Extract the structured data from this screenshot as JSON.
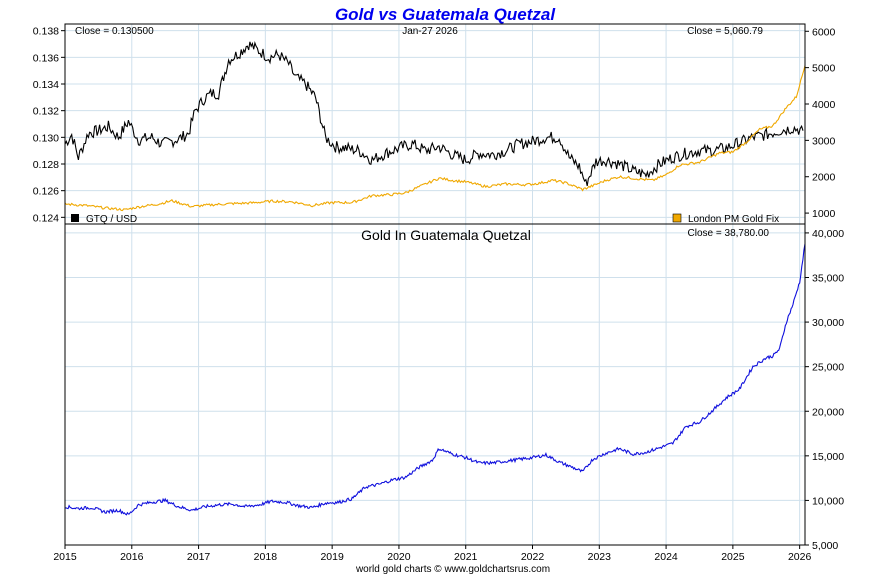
{
  "chart_data": [
    {
      "type": "line",
      "title": "Gold vs Guatemala Quetzal",
      "date_label": "Jan-27  2026",
      "left_close_label": "Close = 0.130500",
      "right_close_label": "Close = 5,060.79",
      "x_ticks": [
        "2015",
        "2016",
        "2017",
        "2018",
        "2019",
        "2020",
        "2021",
        "2022",
        "2023",
        "2024",
        "2025",
        "2026"
      ],
      "xlim": [
        2015.0,
        2026.08
      ],
      "left_axis": {
        "ylim": [
          0.1235,
          0.1385
        ],
        "ticks": [
          "0.138",
          "0.136",
          "0.134",
          "0.132",
          "0.130",
          "0.128",
          "0.126",
          "0.124"
        ],
        "tick_values": [
          0.138,
          0.136,
          0.134,
          0.132,
          0.13,
          0.128,
          0.126,
          0.124
        ]
      },
      "right_axis": {
        "ylim": [
          700,
          6200
        ],
        "ticks": [
          "6000",
          "5000",
          "4000",
          "3000",
          "2000",
          "1000"
        ],
        "tick_values": [
          6000,
          5000,
          4000,
          3000,
          2000,
          1000
        ]
      },
      "series": [
        {
          "name": "GTQ / USD",
          "axis": "left",
          "color": "#000000",
          "x": [
            2015.0,
            2015.1,
            2015.2,
            2015.35,
            2015.5,
            2015.65,
            2015.8,
            2015.95,
            2016.1,
            2016.3,
            2016.45,
            2016.6,
            2016.75,
            2016.85,
            2016.95,
            2017.1,
            2017.2,
            2017.3,
            2017.45,
            2017.6,
            2017.75,
            2017.9,
            2018.05,
            2018.2,
            2018.35,
            2018.45,
            2018.6,
            2018.75,
            2018.9,
            2019.05,
            2019.2,
            2019.4,
            2019.6,
            2019.8,
            2020.0,
            2020.2,
            2020.4,
            2020.6,
            2020.8,
            2021.0,
            2021.2,
            2021.4,
            2021.6,
            2021.8,
            2022.0,
            2022.2,
            2022.4,
            2022.55,
            2022.7,
            2022.8,
            2022.95,
            2023.1,
            2023.3,
            2023.5,
            2023.7,
            2023.9,
            2024.1,
            2024.3,
            2024.5,
            2024.7,
            2024.9,
            2025.1,
            2025.3,
            2025.5,
            2025.7,
            2025.9,
            2026.05
          ],
          "values": [
            0.1295,
            0.1302,
            0.1285,
            0.1303,
            0.1305,
            0.1308,
            0.13,
            0.1312,
            0.1298,
            0.13,
            0.1295,
            0.1297,
            0.13,
            0.1303,
            0.132,
            0.133,
            0.1333,
            0.1333,
            0.1358,
            0.1363,
            0.137,
            0.1365,
            0.136,
            0.1362,
            0.1355,
            0.1345,
            0.134,
            0.133,
            0.13,
            0.1293,
            0.1292,
            0.129,
            0.1283,
            0.1288,
            0.1292,
            0.1295,
            0.129,
            0.1293,
            0.1287,
            0.1283,
            0.1288,
            0.1287,
            0.129,
            0.1295,
            0.1297,
            0.13,
            0.13,
            0.1285,
            0.1278,
            0.1265,
            0.1282,
            0.1283,
            0.128,
            0.1275,
            0.1272,
            0.128,
            0.1285,
            0.1288,
            0.129,
            0.129,
            0.1292,
            0.1296,
            0.13,
            0.1302,
            0.1305,
            0.1307,
            0.1305
          ]
        },
        {
          "name": "London PM Gold Fix",
          "axis": "right",
          "color": "#f0a800",
          "x": [
            2015.0,
            2015.3,
            2015.6,
            2015.9,
            2016.1,
            2016.4,
            2016.6,
            2016.9,
            2017.2,
            2017.5,
            2017.8,
            2018.1,
            2018.4,
            2018.7,
            2019.0,
            2019.3,
            2019.6,
            2019.9,
            2020.1,
            2020.3,
            2020.6,
            2020.8,
            2021.0,
            2021.3,
            2021.6,
            2021.9,
            2022.1,
            2022.3,
            2022.5,
            2022.75,
            2022.9,
            2023.1,
            2023.3,
            2023.6,
            2023.8,
            2024.0,
            2024.2,
            2024.5,
            2024.8,
            2025.0,
            2025.2,
            2025.4,
            2025.6,
            2025.8,
            2025.95,
            2026.08
          ],
          "values": [
            1250,
            1210,
            1140,
            1090,
            1170,
            1250,
            1340,
            1180,
            1230,
            1260,
            1280,
            1330,
            1310,
            1210,
            1290,
            1290,
            1480,
            1510,
            1560,
            1720,
            1960,
            1900,
            1860,
            1730,
            1800,
            1780,
            1820,
            1900,
            1830,
            1650,
            1750,
            1900,
            2000,
            1940,
            1900,
            2050,
            2320,
            2400,
            2650,
            2680,
            2950,
            3300,
            3400,
            3900,
            4200,
            5060
          ]
        }
      ],
      "legend": {
        "left": "GTQ / USD",
        "right": "London PM Gold Fix"
      }
    },
    {
      "type": "line",
      "title": "Gold In Guatemala Quetzal",
      "close_label": "Close = 38,780.00",
      "footer": "world gold charts © www.goldchartsrus.com",
      "xlim": [
        2015.0,
        2026.08
      ],
      "ylim": [
        5000,
        41000
      ],
      "y_ticks": [
        "40,000",
        "35,000",
        "30,000",
        "25,000",
        "20,000",
        "15,000",
        "10,000",
        "5,000"
      ],
      "y_tick_values": [
        40000,
        35000,
        30000,
        25000,
        20000,
        15000,
        10000,
        5000
      ],
      "series": [
        {
          "name": "Gold In Guatemala Quetzal",
          "color": "#1010dd",
          "x": [
            2015.0,
            2015.2,
            2015.4,
            2015.6,
            2015.8,
            2015.95,
            2016.1,
            2016.3,
            2016.5,
            2016.7,
            2016.9,
            2017.1,
            2017.3,
            2017.5,
            2017.7,
            2017.9,
            2018.1,
            2018.3,
            2018.5,
            2018.7,
            2018.9,
            2019.1,
            2019.3,
            2019.5,
            2019.7,
            2019.9,
            2020.1,
            2020.3,
            2020.5,
            2020.6,
            2020.8,
            2021.0,
            2021.2,
            2021.4,
            2021.6,
            2021.8,
            2022.0,
            2022.2,
            2022.4,
            2022.6,
            2022.75,
            2022.9,
            2023.1,
            2023.3,
            2023.5,
            2023.7,
            2023.9,
            2024.1,
            2024.3,
            2024.5,
            2024.7,
            2024.9,
            2025.1,
            2025.3,
            2025.5,
            2025.6,
            2025.7,
            2025.8,
            2025.9,
            2026.0,
            2026.08
          ],
          "values": [
            9300,
            9100,
            9200,
            8700,
            8900,
            8400,
            9500,
            9800,
            10000,
            9300,
            8900,
            9300,
            9500,
            9600,
            9300,
            9500,
            9900,
            9800,
            9400,
            9200,
            9700,
            9800,
            10200,
            11500,
            11800,
            12300,
            12600,
            13700,
            14500,
            15800,
            15200,
            14800,
            14200,
            14200,
            14400,
            14600,
            14800,
            15100,
            14300,
            13700,
            13200,
            14600,
            15300,
            15800,
            15200,
            15400,
            15900,
            16400,
            18300,
            18800,
            20100,
            21500,
            22500,
            25000,
            26000,
            26200,
            27000,
            30000,
            32000,
            34500,
            38780
          ]
        }
      ]
    }
  ]
}
